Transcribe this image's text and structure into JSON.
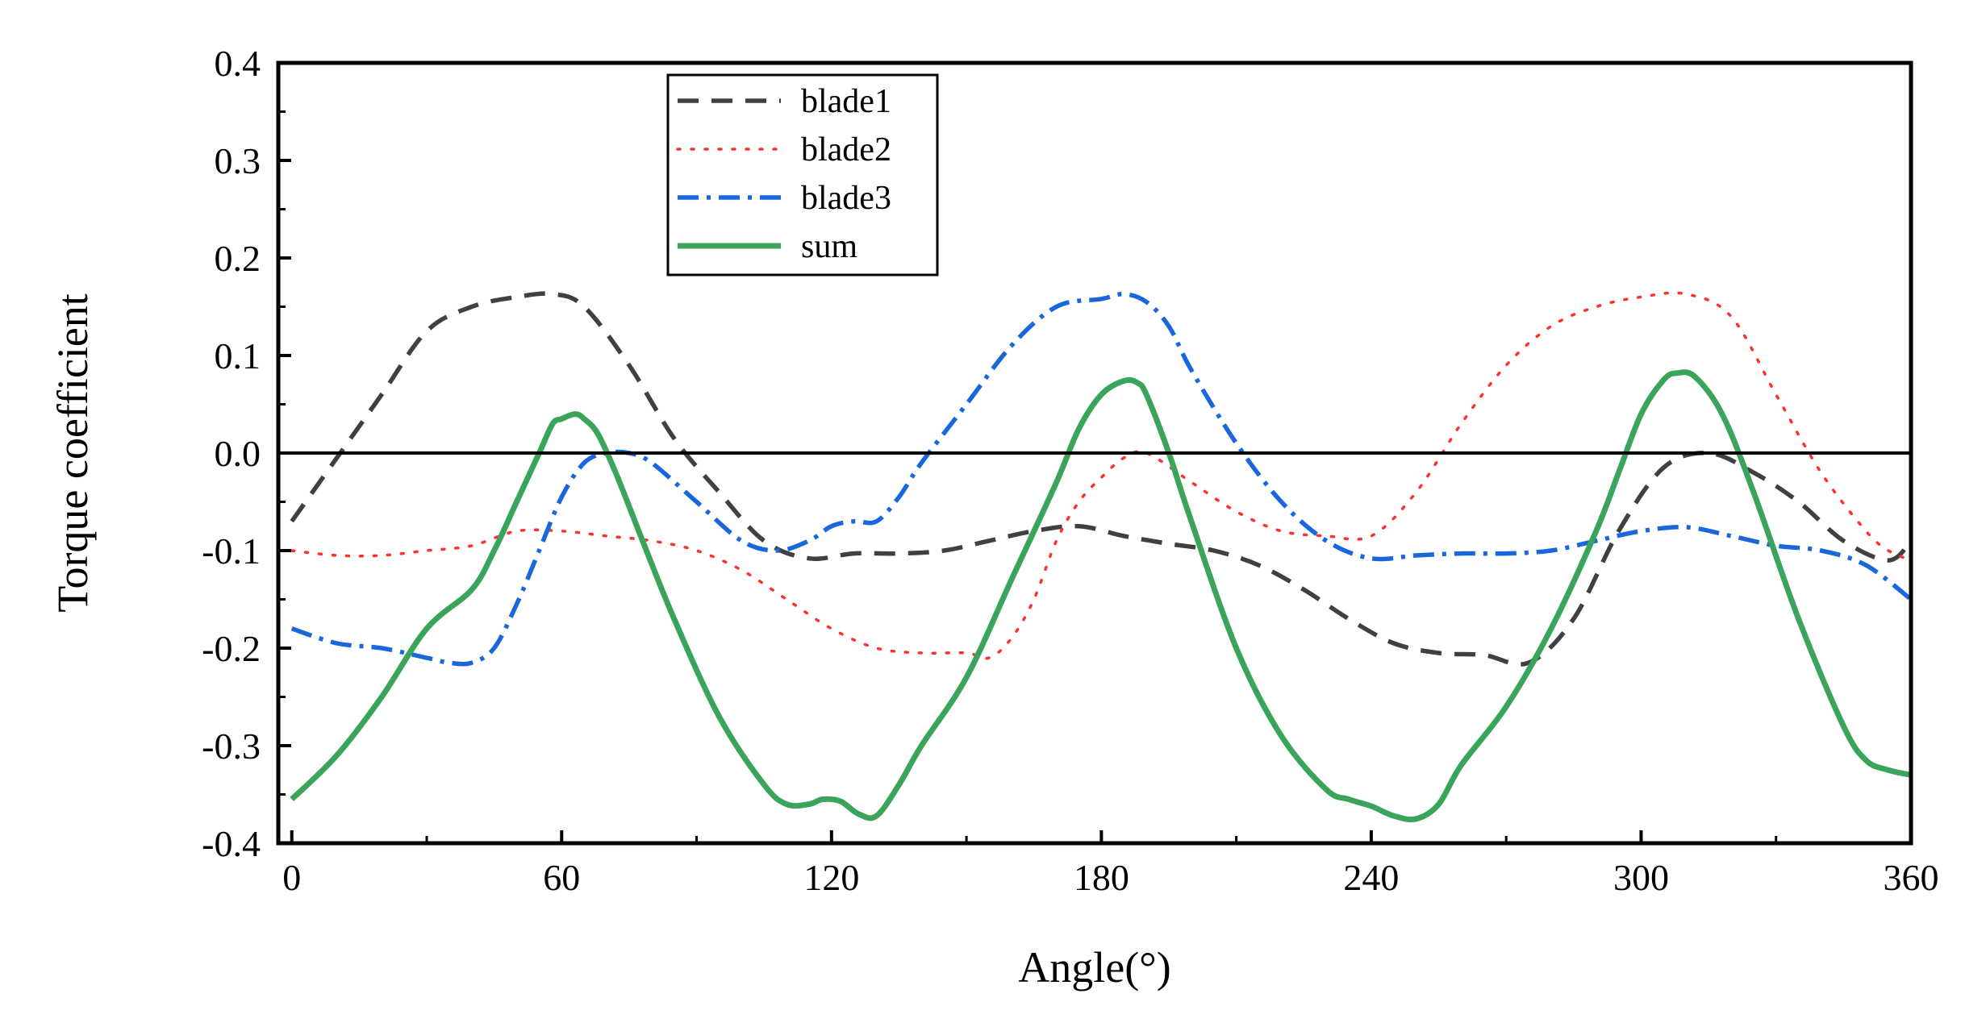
{
  "chart_data": {
    "type": "line",
    "title": "",
    "xlabel": "Angle(°)",
    "ylabel": "Torque coefficient",
    "xlim": [
      -3,
      360
    ],
    "ylim": [
      -0.4,
      0.4
    ],
    "xticks": [
      0,
      60,
      120,
      180,
      240,
      300,
      360
    ],
    "xtick_labels": [
      "0",
      "60",
      "120",
      "180",
      "240",
      "300",
      "360"
    ],
    "yticks": [
      -0.4,
      -0.3,
      -0.2,
      -0.1,
      0.0,
      0.1,
      0.2,
      0.3,
      0.4
    ],
    "ytick_labels": [
      "-0.4",
      "-0.3",
      "-0.2",
      "-0.1",
      "0.0",
      "0.1",
      "0.2",
      "0.3",
      "0.4"
    ],
    "reference_line_y": 0.0,
    "grid": false,
    "legend_position": "top-left-center",
    "series": [
      {
        "name": "blade1",
        "color": "#404040",
        "style": "dashed",
        "x": [
          0,
          10,
          20,
          30,
          40,
          50,
          58,
          65,
          75,
          85,
          95,
          105,
          115,
          125,
          135,
          145,
          155,
          165,
          175,
          185,
          195,
          205,
          215,
          225,
          235,
          245,
          255,
          265,
          275,
          285,
          295,
          305,
          315,
          325,
          335,
          345,
          355,
          360
        ],
        "values": [
          -0.07,
          -0.005,
          0.06,
          0.125,
          0.15,
          0.16,
          0.163,
          0.15,
          0.09,
          0.015,
          -0.04,
          -0.09,
          -0.108,
          -0.103,
          -0.103,
          -0.1,
          -0.09,
          -0.08,
          -0.075,
          -0.085,
          -0.093,
          -0.1,
          -0.115,
          -0.14,
          -0.17,
          -0.195,
          -0.205,
          -0.207,
          -0.215,
          -0.17,
          -0.08,
          -0.015,
          0.0,
          -0.02,
          -0.05,
          -0.09,
          -0.11,
          -0.09
        ]
      },
      {
        "name": "blade2",
        "color": "#ff3030",
        "style": "dotted",
        "x": [
          0,
          10,
          20,
          30,
          40,
          50,
          60,
          70,
          80,
          90,
          100,
          110,
          120,
          130,
          140,
          150,
          155,
          160,
          165,
          170,
          175,
          180,
          185,
          190,
          200,
          210,
          220,
          230,
          240,
          250,
          260,
          270,
          280,
          290,
          300,
          310,
          320,
          330,
          340,
          350,
          355,
          360
        ],
        "values": [
          -0.1,
          -0.105,
          -0.105,
          -0.1,
          -0.095,
          -0.08,
          -0.08,
          -0.085,
          -0.09,
          -0.1,
          -0.12,
          -0.15,
          -0.18,
          -0.2,
          -0.205,
          -0.205,
          -0.21,
          -0.19,
          -0.15,
          -0.09,
          -0.05,
          -0.025,
          -0.005,
          0.0,
          -0.03,
          -0.06,
          -0.08,
          -0.085,
          -0.085,
          -0.04,
          0.03,
          0.09,
          0.13,
          0.15,
          0.16,
          0.163,
          0.14,
          0.06,
          -0.02,
          -0.08,
          -0.1,
          -0.11
        ]
      },
      {
        "name": "blade3",
        "color": "#1a66dd",
        "style": "dash-dot",
        "x": [
          0,
          10,
          20,
          30,
          35,
          40,
          45,
          50,
          55,
          60,
          65,
          70,
          75,
          80,
          90,
          100,
          108,
          115,
          120,
          125,
          130,
          135,
          140,
          150,
          160,
          170,
          180,
          185,
          190,
          195,
          200,
          210,
          220,
          230,
          240,
          250,
          260,
          270,
          280,
          290,
          300,
          310,
          320,
          330,
          340,
          350,
          360
        ],
        "values": [
          -0.18,
          -0.195,
          -0.2,
          -0.21,
          -0.215,
          -0.215,
          -0.2,
          -0.155,
          -0.1,
          -0.045,
          -0.01,
          0.0,
          0.0,
          -0.01,
          -0.05,
          -0.09,
          -0.1,
          -0.09,
          -0.075,
          -0.07,
          -0.07,
          -0.045,
          -0.01,
          0.05,
          0.11,
          0.15,
          0.158,
          0.163,
          0.155,
          0.13,
          0.085,
          0.01,
          -0.05,
          -0.09,
          -0.108,
          -0.105,
          -0.103,
          -0.103,
          -0.1,
          -0.09,
          -0.08,
          -0.076,
          -0.085,
          -0.095,
          -0.1,
          -0.115,
          -0.15
        ]
      },
      {
        "name": "sum",
        "color": "#3aa55a",
        "style": "solid",
        "x": [
          0,
          10,
          20,
          30,
          40,
          45,
          50,
          55,
          58,
          60,
          63,
          65,
          68,
          72,
          78,
          85,
          95,
          105,
          110,
          115,
          118,
          122,
          126,
          130,
          135,
          140,
          150,
          160,
          170,
          175,
          180,
          185,
          188,
          190,
          195,
          200,
          210,
          220,
          230,
          235,
          240,
          245,
          250,
          255,
          260,
          270,
          280,
          290,
          295,
          300,
          305,
          308,
          312,
          318,
          325,
          335,
          345,
          350,
          355,
          360
        ],
        "values": [
          -0.355,
          -0.31,
          -0.25,
          -0.18,
          -0.14,
          -0.1,
          -0.05,
          0.0,
          0.03,
          0.035,
          0.04,
          0.035,
          0.02,
          -0.02,
          -0.09,
          -0.17,
          -0.27,
          -0.34,
          -0.36,
          -0.36,
          -0.355,
          -0.357,
          -0.37,
          -0.372,
          -0.34,
          -0.3,
          -0.23,
          -0.13,
          -0.03,
          0.025,
          0.06,
          0.074,
          0.072,
          0.06,
          0.0,
          -0.07,
          -0.2,
          -0.29,
          -0.345,
          -0.355,
          -0.362,
          -0.372,
          -0.375,
          -0.36,
          -0.32,
          -0.26,
          -0.18,
          -0.08,
          -0.02,
          0.04,
          0.075,
          0.082,
          0.078,
          0.04,
          -0.04,
          -0.17,
          -0.28,
          -0.315,
          -0.325,
          -0.33
        ]
      }
    ]
  }
}
